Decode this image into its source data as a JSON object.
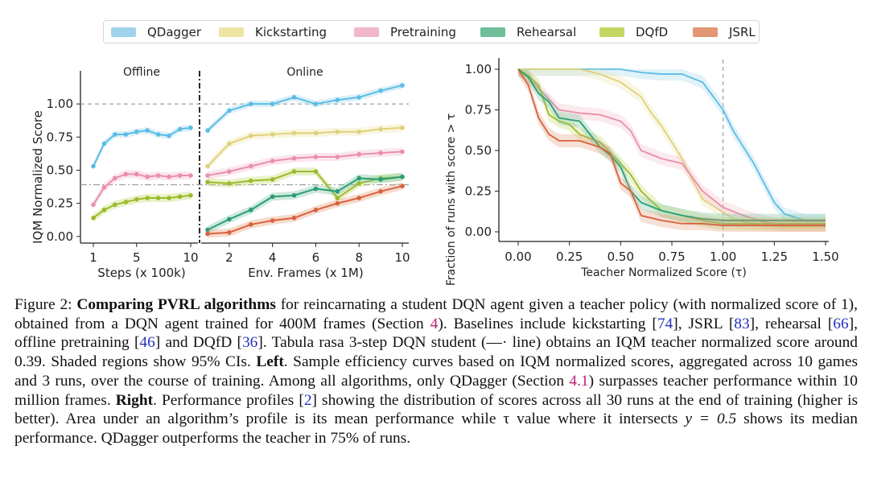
{
  "legend": [
    {
      "name": "QDagger",
      "color": "#9fd4ec"
    },
    {
      "name": "Kickstarting",
      "color": "#ece5a4"
    },
    {
      "name": "Pretraining",
      "color": "#f1b8c8"
    },
    {
      "name": "Rehearsal",
      "color": "#6fbf9b"
    },
    {
      "name": "DQfD",
      "color": "#c3d862"
    },
    {
      "name": "JSRL",
      "color": "#e49774"
    }
  ],
  "chart_data": [
    {
      "type": "line",
      "panel": "left",
      "ylabel": "IQM Normalized Score",
      "ylim": [
        -0.05,
        1.25
      ],
      "yticks": [
        "0.00",
        "0.25",
        "0.50",
        "0.75",
        "1.00"
      ],
      "reference_lines": [
        {
          "y": 1.0,
          "label": "teacher"
        },
        {
          "y": 0.39,
          "label": "tabula rasa 3-step DQN"
        }
      ],
      "offline": {
        "title": "Offline",
        "xlabel": "Steps (x 100k)",
        "xticks": [
          "1",
          "5",
          "10"
        ],
        "x": [
          1,
          2,
          3,
          4,
          5,
          6,
          7,
          8,
          9,
          10
        ],
        "series": [
          {
            "name": "QDagger",
            "values": [
              0.53,
              0.7,
              0.77,
              0.77,
              0.79,
              0.8,
              0.77,
              0.76,
              0.81,
              0.82
            ]
          },
          {
            "name": "Pretraining",
            "values": [
              0.24,
              0.37,
              0.44,
              0.47,
              0.47,
              0.45,
              0.46,
              0.45,
              0.46,
              0.46
            ]
          },
          {
            "name": "DQfD",
            "values": [
              0.14,
              0.2,
              0.24,
              0.26,
              0.28,
              0.29,
              0.29,
              0.29,
              0.3,
              0.31
            ]
          }
        ]
      },
      "online": {
        "title": "Online",
        "xlabel": "Env. Frames (x 1M)",
        "xticks": [
          "2",
          "4",
          "6",
          "8",
          "10"
        ],
        "x": [
          1,
          2,
          3,
          4,
          5,
          6,
          7,
          8,
          9,
          10
        ],
        "series": [
          {
            "name": "QDagger",
            "values": [
              0.8,
              0.95,
              1.0,
              1.0,
              1.05,
              1.0,
              1.03,
              1.05,
              1.1,
              1.14
            ]
          },
          {
            "name": "Kickstarting",
            "values": [
              0.53,
              0.7,
              0.76,
              0.77,
              0.78,
              0.78,
              0.79,
              0.79,
              0.81,
              0.82
            ]
          },
          {
            "name": "Pretraining",
            "values": [
              0.46,
              0.49,
              0.53,
              0.57,
              0.59,
              0.6,
              0.6,
              0.62,
              0.63,
              0.64
            ]
          },
          {
            "name": "DQfD",
            "values": [
              0.41,
              0.4,
              0.42,
              0.43,
              0.49,
              0.49,
              0.29,
              0.4,
              0.44,
              0.45
            ]
          },
          {
            "name": "Rehearsal",
            "values": [
              0.05,
              0.13,
              0.2,
              0.3,
              0.31,
              0.36,
              0.34,
              0.44,
              0.43,
              0.45
            ]
          },
          {
            "name": "JSRL",
            "values": [
              0.02,
              0.03,
              0.09,
              0.12,
              0.14,
              0.2,
              0.25,
              0.29,
              0.34,
              0.38
            ]
          }
        ]
      }
    },
    {
      "type": "line",
      "panel": "right",
      "xlabel": "Teacher Normalized Score (τ)",
      "ylabel": "Fraction of runs with score > τ",
      "xlim": [
        -0.05,
        1.55
      ],
      "ylim": [
        -0.05,
        1.05
      ],
      "xticks": [
        "0.00",
        "0.25",
        "0.50",
        "0.75",
        "1.00",
        "1.25",
        "1.50"
      ],
      "yticks": [
        "0.00",
        "0.25",
        "0.50",
        "0.75",
        "1.00"
      ],
      "reference_lines": [
        {
          "x": 1.0
        }
      ],
      "series": [
        {
          "name": "QDagger",
          "x": [
            0,
            0.4,
            0.5,
            0.6,
            0.7,
            0.8,
            0.9,
            1.0,
            1.05,
            1.1,
            1.15,
            1.2,
            1.25,
            1.3,
            1.4,
            1.5
          ],
          "values": [
            1.0,
            1.0,
            1.0,
            0.98,
            0.97,
            0.97,
            0.92,
            0.75,
            0.62,
            0.52,
            0.42,
            0.3,
            0.18,
            0.11,
            0.07,
            0.07
          ]
        },
        {
          "name": "Kickstarting",
          "x": [
            0,
            0.3,
            0.4,
            0.5,
            0.6,
            0.65,
            0.7,
            0.75,
            0.8,
            0.85,
            0.9,
            1.0,
            1.05,
            1.1,
            1.2,
            1.3,
            1.5
          ],
          "values": [
            1.0,
            1.0,
            0.97,
            0.92,
            0.83,
            0.73,
            0.65,
            0.55,
            0.45,
            0.32,
            0.2,
            0.12,
            0.08,
            0.06,
            0.04,
            0.03,
            0.03
          ]
        },
        {
          "name": "Pretraining",
          "x": [
            0,
            0.05,
            0.1,
            0.2,
            0.3,
            0.4,
            0.5,
            0.55,
            0.6,
            0.7,
            0.8,
            0.9,
            1.0,
            1.1,
            1.2,
            1.3,
            1.5
          ],
          "values": [
            1.0,
            0.95,
            0.88,
            0.75,
            0.73,
            0.72,
            0.68,
            0.62,
            0.5,
            0.45,
            0.42,
            0.25,
            0.15,
            0.1,
            0.06,
            0.04,
            0.04
          ]
        },
        {
          "name": "DQfD",
          "x": [
            0,
            0.05,
            0.1,
            0.15,
            0.2,
            0.25,
            0.3,
            0.4,
            0.5,
            0.55,
            0.6,
            0.7,
            0.8,
            0.9,
            1.0,
            1.5
          ],
          "values": [
            1.0,
            0.96,
            0.9,
            0.72,
            0.68,
            0.66,
            0.6,
            0.55,
            0.42,
            0.35,
            0.25,
            0.13,
            0.1,
            0.07,
            0.05,
            0.05
          ]
        },
        {
          "name": "Rehearsal",
          "x": [
            0,
            0.05,
            0.1,
            0.15,
            0.2,
            0.3,
            0.35,
            0.4,
            0.45,
            0.5,
            0.55,
            0.6,
            0.7,
            0.8,
            0.9,
            1.0,
            1.5
          ],
          "values": [
            1.0,
            0.95,
            0.85,
            0.8,
            0.7,
            0.68,
            0.6,
            0.52,
            0.47,
            0.4,
            0.25,
            0.18,
            0.13,
            0.1,
            0.08,
            0.07,
            0.07
          ]
        },
        {
          "name": "JSRL",
          "x": [
            0,
            0.05,
            0.1,
            0.15,
            0.2,
            0.3,
            0.4,
            0.45,
            0.5,
            0.55,
            0.6,
            0.7,
            0.8,
            0.9,
            1.0,
            1.5
          ],
          "values": [
            1.0,
            0.9,
            0.7,
            0.6,
            0.56,
            0.56,
            0.52,
            0.48,
            0.3,
            0.25,
            0.1,
            0.07,
            0.05,
            0.05,
            0.04,
            0.04
          ]
        }
      ]
    }
  ],
  "caption": {
    "fig_label": "Figure 2: ",
    "bold_title": "Comparing PVRL algorithms",
    "t1": " for reincarnating a student DQN agent given a teacher policy (with normalized score of 1), obtained from a DQN agent trained for 400M frames (Section ",
    "sec1": "4",
    "t2": "). Baselines include kickstarting [",
    "r74": "74",
    "t3": "], JSRL [",
    "r83": "83",
    "t4": "], rehearsal [",
    "r66": "66",
    "t5": "], offline pretraining [",
    "r46": "46",
    "t6": "] and DQfD [",
    "r36": "36",
    "t7": "]. Tabula rasa 3-step DQN student (—· line) obtains an IQM teacher normalized score around 0.39. Shaded regions show 95% CIs. ",
    "left": "Left",
    "t8": ". Sample efficiency curves based on IQM normalized scores, aggregated across 10 games and 3 runs, over the course of training. Among all algorithms, only QDagger (Section ",
    "sec2": "4.1",
    "t9": ") surpasses teacher performance within 10 million frames. ",
    "right": "Right",
    "t10": ". Performance profiles [",
    "r2": "2",
    "t11": "] showing the distribution of scores across all 30 runs at the end of training (higher is better). Area under an algorithm’s profile is its mean performance while τ value where it intersects ",
    "eq": "y = 0.5",
    "t12": " shows its median performance. QDagger outperforms the teacher in 75% of runs."
  }
}
